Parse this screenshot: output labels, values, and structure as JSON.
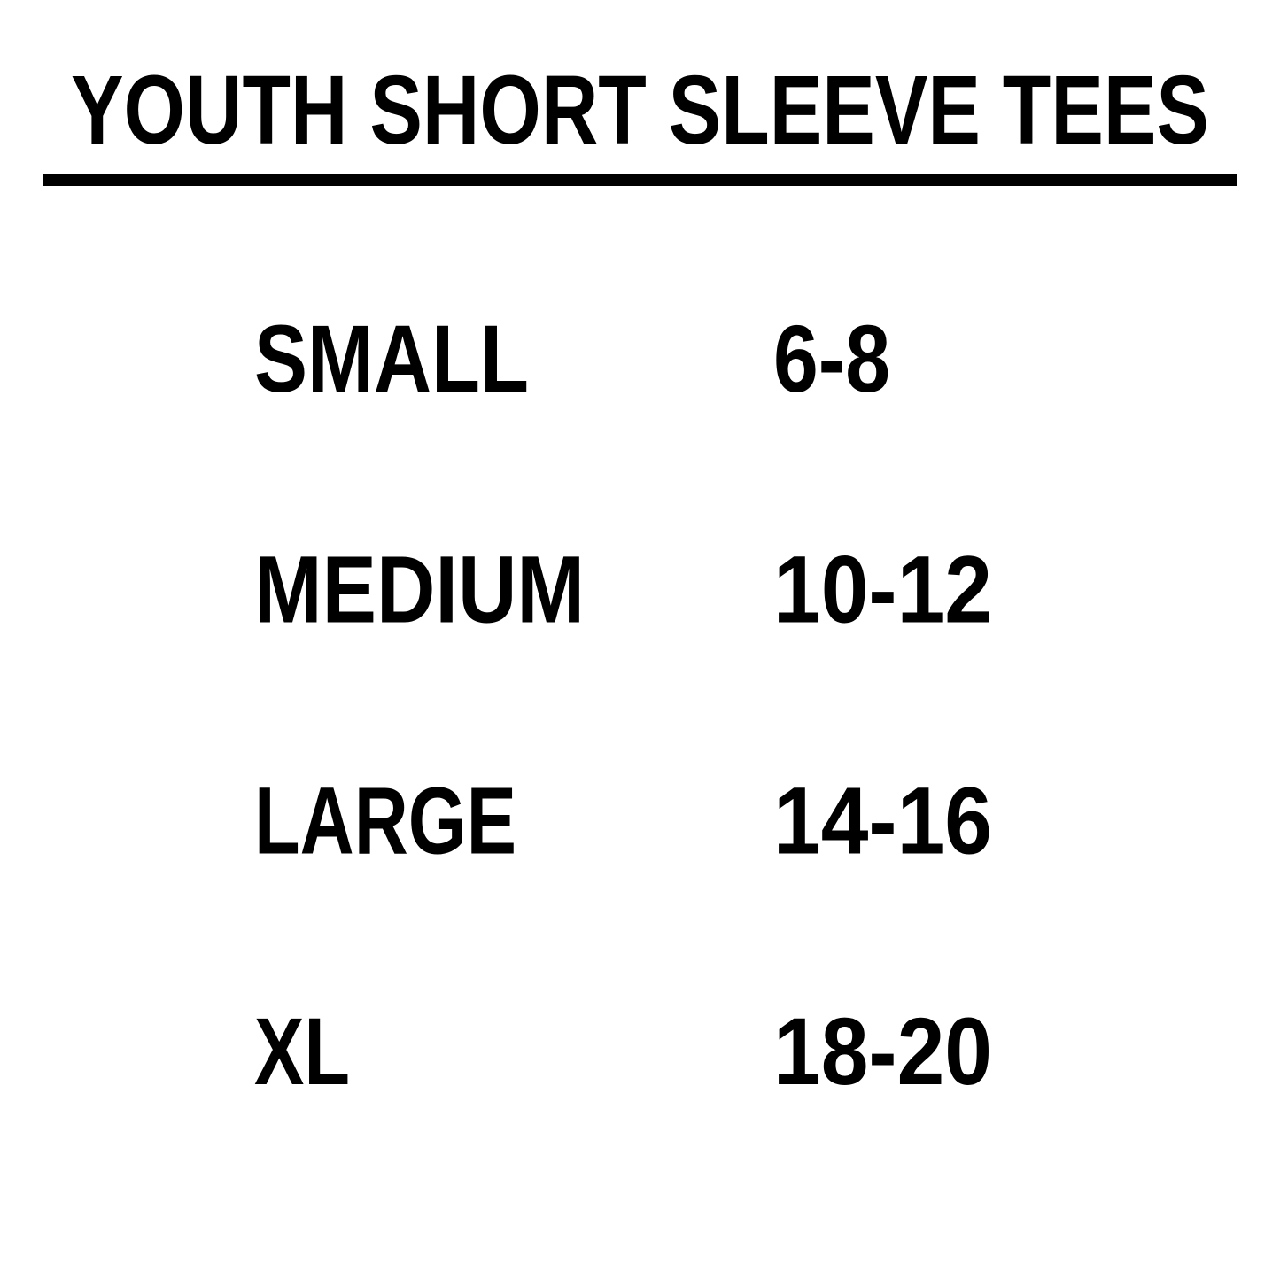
{
  "header": {
    "title": "YOUTH SHORT SLEEVE TEES"
  },
  "table": {
    "rows": [
      [
        "SMALL",
        "6-8"
      ],
      [
        "MEDIUM",
        "10-12"
      ],
      [
        "LARGE",
        "14-16"
      ],
      [
        "XL",
        "18-20"
      ]
    ]
  }
}
